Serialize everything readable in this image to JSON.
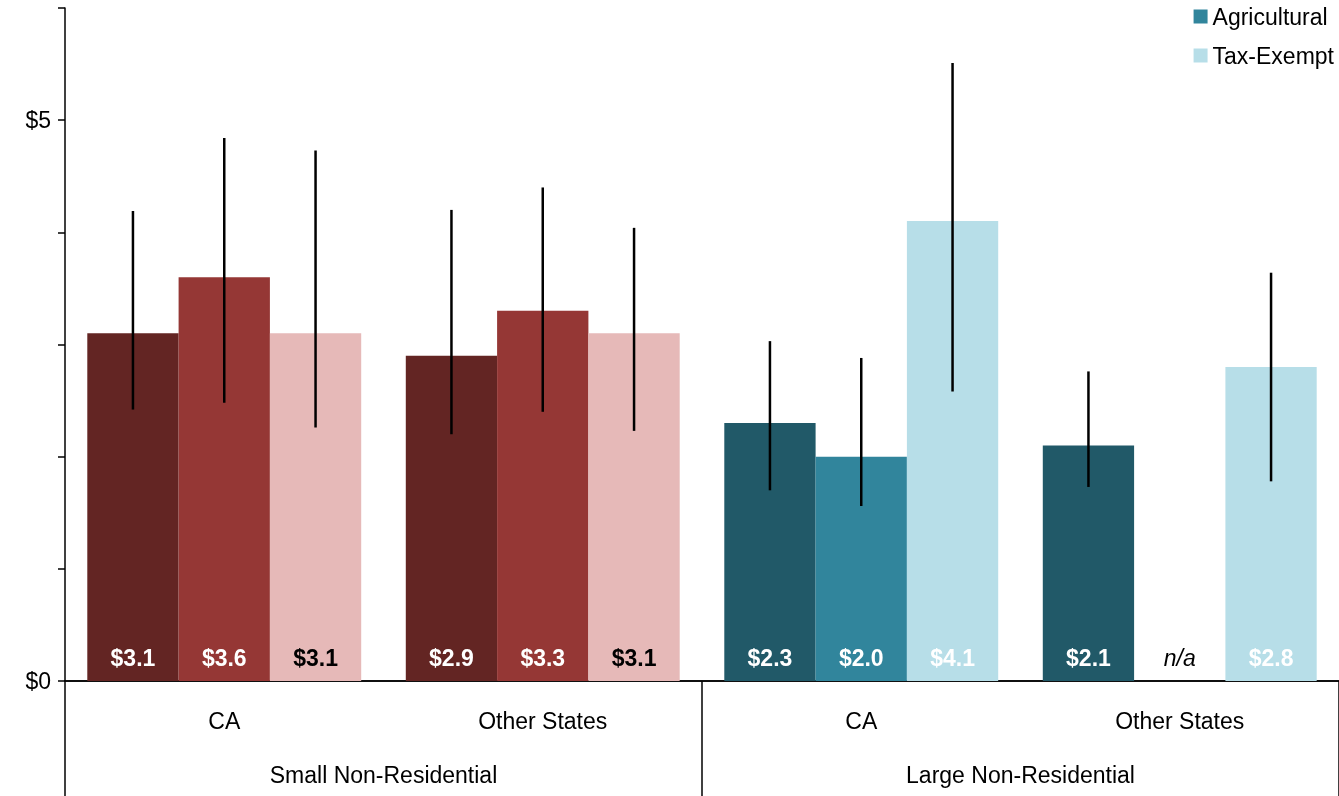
{
  "chart_data": {
    "type": "bar",
    "categories": [
      "CA",
      "Other States",
      "CA",
      "Other States"
    ],
    "annotations": [
      "Small Non-Residential",
      "Large Non-Residential"
    ],
    "series": [
      {
        "color": "#215968",
        "colors": [
          "#632523",
          "#632523",
          "#215968",
          "#215968"
        ],
        "values": [
          3.1,
          2.9,
          2.3,
          2.1
        ],
        "value_labels": [
          "$3.1",
          "$2.9",
          "$2.3",
          "$2.1"
        ],
        "errors": [
          [
            2.42,
            4.19
          ],
          [
            2.2,
            4.2
          ],
          [
            1.7,
            3.03
          ],
          [
            1.73,
            2.76
          ]
        ]
      },
      {
        "name": "Agricultural",
        "color": "#31859c",
        "colors": [
          "#953735",
          "#953735",
          "#31859c",
          null
        ],
        "values": [
          3.6,
          3.3,
          2.0,
          null
        ],
        "value_labels": [
          "$3.6",
          "$3.3",
          "$2.0",
          "n/a"
        ],
        "errors": [
          [
            2.48,
            4.84
          ],
          [
            2.4,
            4.4
          ],
          [
            1.56,
            2.88
          ],
          null
        ]
      },
      {
        "name": "Tax-Exempt",
        "color": "#b7dee8",
        "colors": [
          "#e6b9b8",
          "#e6b9b8",
          "#b7dee8",
          "#b7dee8"
        ],
        "values": [
          3.1,
          3.1,
          4.1,
          2.8
        ],
        "value_labels": [
          "$3.1",
          "$3.1",
          "$4.1",
          "$2.8"
        ],
        "errors": [
          [
            2.26,
            4.73
          ],
          [
            2.23,
            4.04
          ],
          [
            2.58,
            5.51
          ],
          [
            1.78,
            3.64
          ]
        ]
      }
    ],
    "ylim": [
      0,
      6
    ],
    "yticks": [
      {
        "value": 0,
        "label": "$0"
      },
      {
        "value": 1,
        "label": null
      },
      {
        "value": 2,
        "label": null
      },
      {
        "value": 3,
        "label": null
      },
      {
        "value": 4,
        "label": null
      },
      {
        "value": 5,
        "label": "$5"
      },
      {
        "value": 6,
        "label": null
      }
    ],
    "legend": "top right",
    "grid": false
  }
}
